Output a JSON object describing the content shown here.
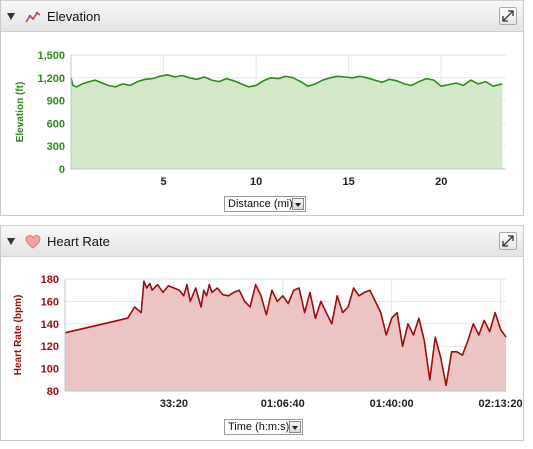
{
  "elevation_panel": {
    "title": "Elevation",
    "icon": "elevation-icon",
    "axis_selector": {
      "selected": "Distance (mi)"
    }
  },
  "heart_rate_panel": {
    "title": "Heart Rate",
    "icon": "heart-icon",
    "axis_selector": {
      "selected": "Time (h:m:s)"
    }
  },
  "chart_data": [
    {
      "type": "area",
      "ylabel": "Elevation (ft)",
      "xlabel": "Distance (mi)",
      "color": "#2e8b1e",
      "fill": "#d2e8c8",
      "xlim": [
        0,
        23.5
      ],
      "ylim": [
        0,
        1500
      ],
      "xticks": [
        "5",
        "10",
        "15",
        "20"
      ],
      "xtick_values": [
        5,
        10,
        15,
        20
      ],
      "yticks": [
        "0",
        "300",
        "600",
        "900",
        "1,200",
        "1,500"
      ],
      "ytick_values": [
        0,
        300,
        600,
        900,
        1200,
        1500
      ],
      "x": [
        0,
        0.1,
        0.3,
        0.6,
        1.0,
        1.3,
        1.7,
        2.0,
        2.4,
        2.8,
        3.2,
        3.6,
        4.0,
        4.4,
        4.8,
        5.2,
        5.6,
        6.0,
        6.4,
        6.8,
        7.2,
        7.6,
        8.0,
        8.4,
        8.8,
        9.2,
        9.6,
        10.0,
        10.4,
        10.8,
        11.2,
        11.6,
        12.0,
        12.4,
        12.8,
        13.2,
        13.6,
        14.0,
        14.4,
        14.8,
        15.2,
        15.6,
        16.0,
        16.4,
        16.8,
        17.2,
        17.6,
        18.0,
        18.4,
        18.8,
        19.2,
        19.6,
        20.0,
        20.4,
        20.8,
        21.2,
        21.6,
        22.0,
        22.4,
        22.8,
        23.3
      ],
      "y": [
        1200,
        1100,
        1080,
        1120,
        1150,
        1170,
        1130,
        1100,
        1080,
        1120,
        1100,
        1150,
        1180,
        1190,
        1220,
        1240,
        1210,
        1230,
        1200,
        1180,
        1210,
        1170,
        1150,
        1190,
        1160,
        1120,
        1080,
        1100,
        1160,
        1200,
        1190,
        1220,
        1200,
        1150,
        1090,
        1120,
        1170,
        1200,
        1220,
        1210,
        1200,
        1220,
        1200,
        1170,
        1140,
        1180,
        1160,
        1120,
        1100,
        1150,
        1190,
        1170,
        1090,
        1110,
        1130,
        1100,
        1170,
        1120,
        1150,
        1090,
        1120
      ]
    },
    {
      "type": "area",
      "ylabel": "Heart Rate (bpm)",
      "xlabel": "Time (h:m:s)",
      "color": "#9e0d0d",
      "fill": "#ecc4c4",
      "xlim": [
        0,
        8100
      ],
      "ylim": [
        80,
        180
      ],
      "xticks": [
        "33:20",
        "01:06:40",
        "01:40:00",
        "02:13:20"
      ],
      "xtick_values": [
        2000,
        4000,
        6000,
        8000
      ],
      "yticks": [
        "80",
        "100",
        "120",
        "140",
        "160",
        "180"
      ],
      "ytick_values": [
        80,
        100,
        120,
        140,
        160,
        180
      ],
      "x": [
        0,
        1150,
        1280,
        1400,
        1450,
        1500,
        1560,
        1600,
        1700,
        1800,
        1900,
        2000,
        2100,
        2180,
        2240,
        2300,
        2400,
        2500,
        2550,
        2600,
        2650,
        2700,
        2800,
        2900,
        3000,
        3100,
        3200,
        3300,
        3400,
        3500,
        3600,
        3700,
        3800,
        3900,
        4000,
        4100,
        4200,
        4300,
        4400,
        4500,
        4600,
        4700,
        4800,
        4900,
        5000,
        5100,
        5200,
        5300,
        5400,
        5500,
        5600,
        5700,
        5800,
        5900,
        6000,
        6100,
        6200,
        6300,
        6400,
        6500,
        6600,
        6700,
        6800,
        6900,
        7000,
        7100,
        7200,
        7300,
        7400,
        7500,
        7600,
        7700,
        7800,
        7900,
        8000,
        8100
      ],
      "y": [
        132,
        145,
        155,
        150,
        178,
        172,
        176,
        170,
        175,
        168,
        174,
        172,
        170,
        165,
        175,
        160,
        172,
        155,
        170,
        165,
        175,
        168,
        172,
        166,
        165,
        168,
        170,
        160,
        155,
        175,
        165,
        148,
        170,
        160,
        165,
        158,
        170,
        172,
        150,
        168,
        145,
        160,
        150,
        140,
        165,
        150,
        155,
        172,
        165,
        168,
        170,
        160,
        150,
        130,
        145,
        150,
        120,
        140,
        130,
        145,
        125,
        90,
        128,
        110,
        85,
        115,
        115,
        112,
        125,
        140,
        130,
        143,
        133,
        150,
        135,
        128
      ]
    }
  ]
}
